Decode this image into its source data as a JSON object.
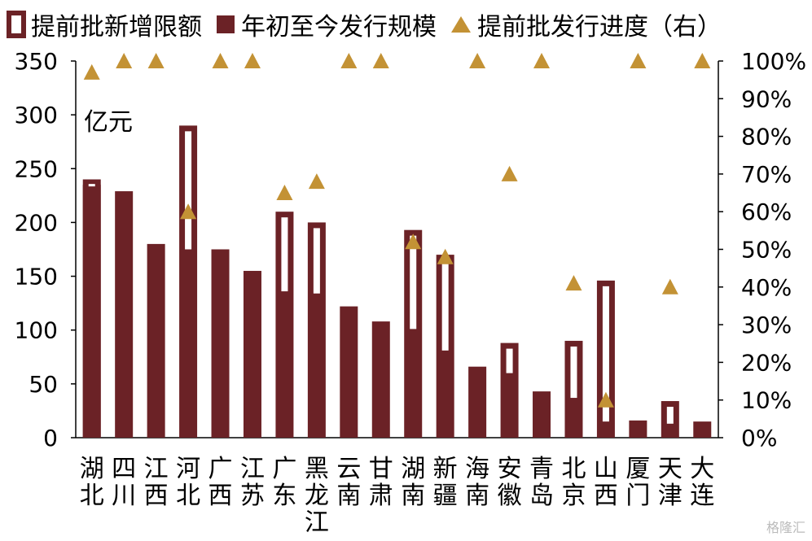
{
  "chart_data": {
    "type": "bar",
    "categories": [
      "湖北",
      "四川",
      "江西",
      "河北",
      "广西",
      "江苏",
      "广东",
      "黑龙江",
      "云南",
      "甘肃",
      "湖南",
      "新疆",
      "海南",
      "安徽",
      "青岛",
      "北京",
      "山西",
      "厦门",
      "天津",
      "大连"
    ],
    "series": [
      {
        "name": "提前批新增限额",
        "type": "bar-outline",
        "values": [
          235,
          null,
          null,
          290,
          null,
          null,
          210,
          200,
          null,
          null,
          193,
          170,
          null,
          88,
          null,
          90,
          146,
          null,
          34,
          null
        ]
      },
      {
        "name": "年初至今发行规模",
        "type": "bar",
        "values": [
          240,
          229,
          180,
          175,
          175,
          155,
          136,
          134,
          122,
          108,
          101,
          81,
          66,
          60,
          43,
          37,
          15,
          16,
          13,
          15
        ]
      },
      {
        "name": "提前批发行进度（右）",
        "type": "marker",
        "axis": "right",
        "values": [
          0.97,
          1.0,
          1.0,
          0.6,
          1.0,
          1.0,
          0.65,
          0.68,
          1.0,
          1.0,
          0.52,
          0.48,
          1.0,
          0.7,
          1.0,
          0.41,
          0.1,
          1.0,
          0.4,
          1.0
        ]
      }
    ],
    "ylabel": "亿元",
    "ylim": [
      0,
      350
    ],
    "yticks": [
      "0",
      "50",
      "100",
      "150",
      "200",
      "250",
      "300",
      "350"
    ],
    "y2lim": [
      0,
      1.0
    ],
    "y2ticks": [
      "0%",
      "10%",
      "20%",
      "30%",
      "40%",
      "50%",
      "60%",
      "70%",
      "80%",
      "90%",
      "100%"
    ],
    "colors": {
      "bar": "#6b2226",
      "marker": "#c39235"
    },
    "legend_position": "top"
  },
  "watermark": "格隆汇"
}
